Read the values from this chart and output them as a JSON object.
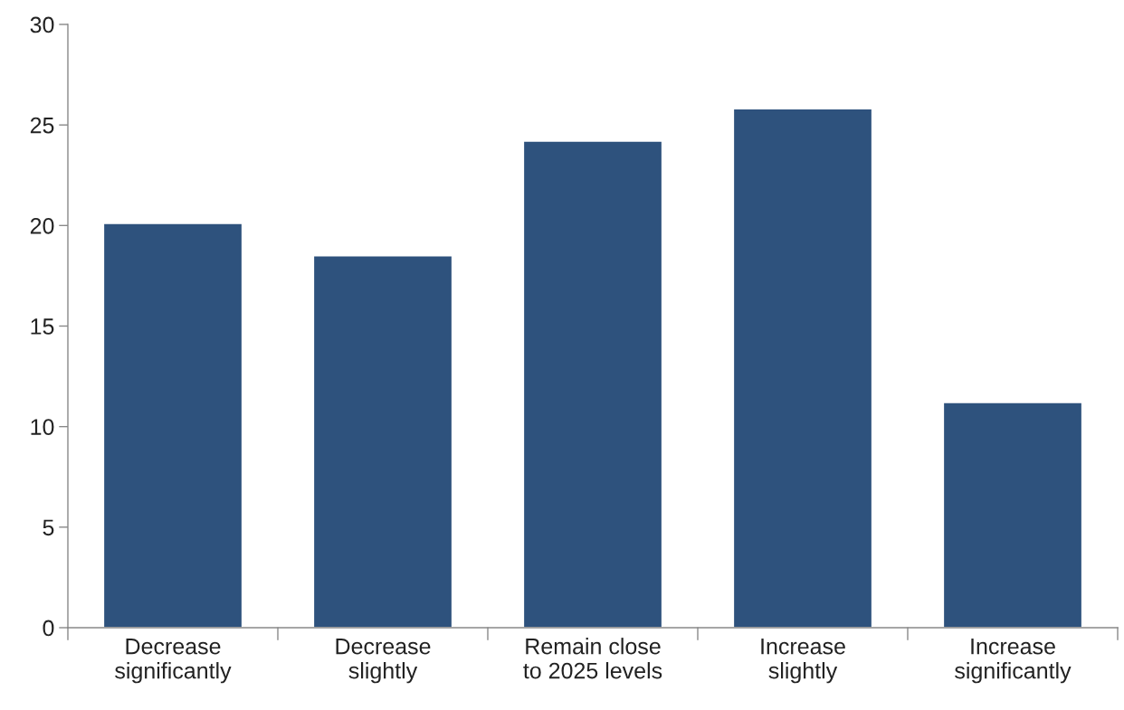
{
  "chart_data": {
    "type": "bar",
    "categories": [
      "Decrease\nsignificantly",
      "Decrease\nslightly",
      "Remain close\nto 2025 levels",
      "Increase\nslightly",
      "Increase\nsignificantly"
    ],
    "values": [
      20.1,
      18.5,
      24.2,
      25.8,
      11.2
    ],
    "color": "#2e527d",
    "ylim": [
      0,
      30
    ],
    "yticks": [
      0,
      5,
      10,
      15,
      20,
      25,
      30
    ],
    "grid": false
  }
}
